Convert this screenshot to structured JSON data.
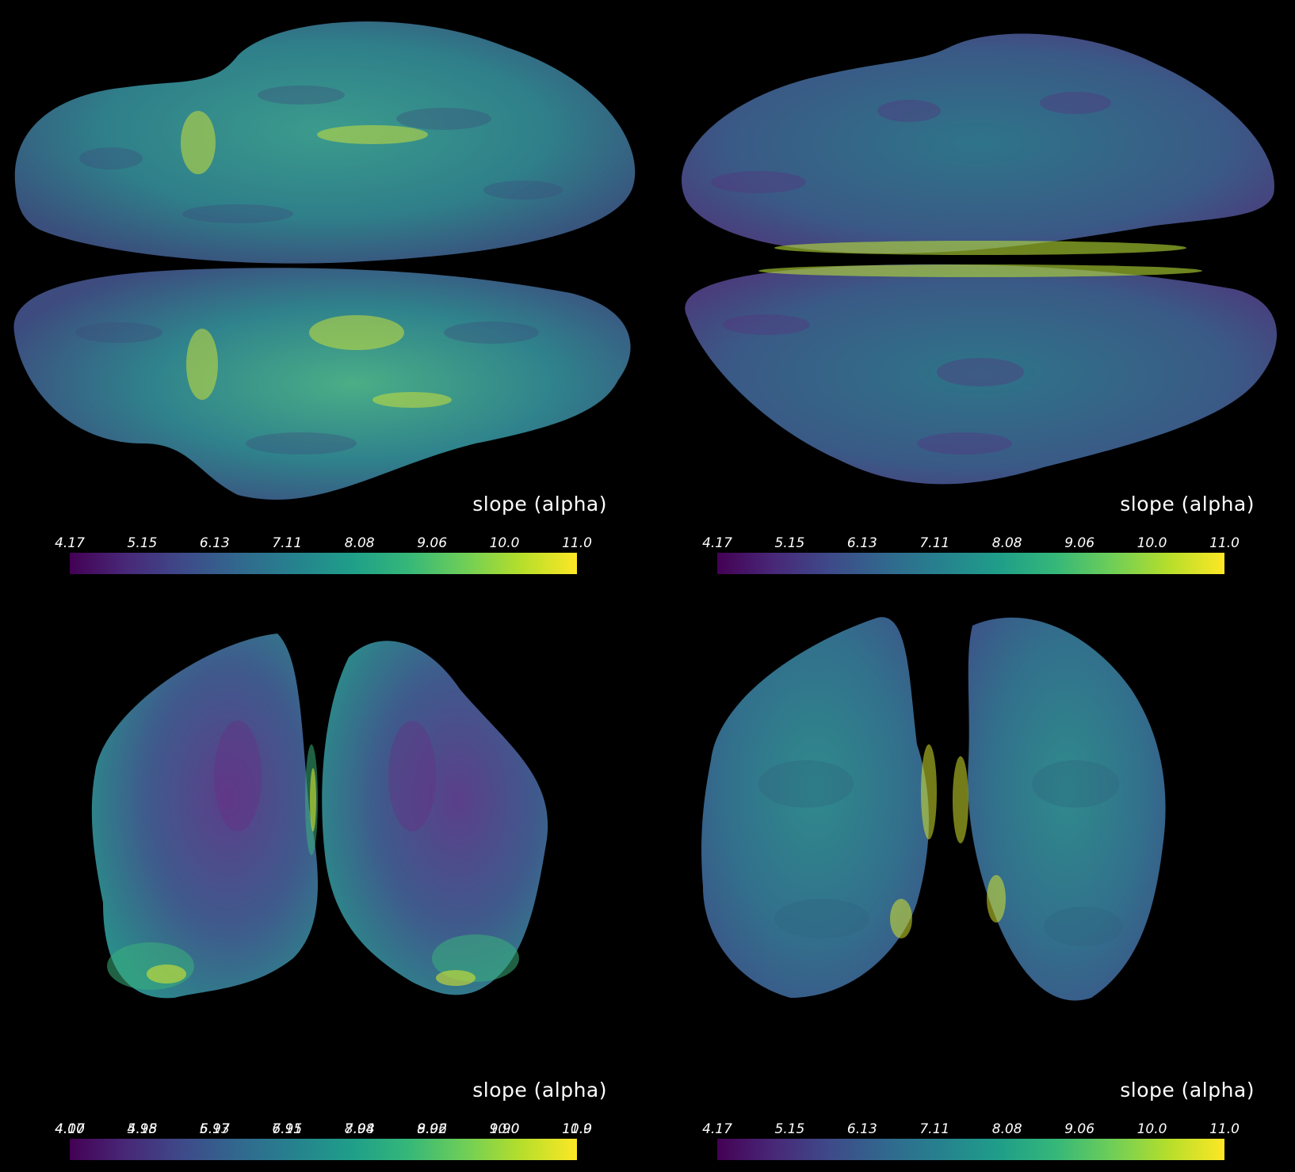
{
  "colormap": [
    "#440154",
    "#482878",
    "#3e4a89",
    "#31688e",
    "#26828e",
    "#1f9e89",
    "#35b779",
    "#6ece58",
    "#b5de2b",
    "#fde725"
  ],
  "panels": [
    {
      "view": "lateral",
      "title": "slope (alpha)",
      "ticks": [
        "4.17",
        "5.15",
        "6.13",
        "7.11",
        "8.08",
        "9.06",
        "10.0",
        "11.0"
      ]
    },
    {
      "view": "medial",
      "title": "slope (alpha)",
      "ticks": [
        "4.17",
        "5.15",
        "6.13",
        "7.11",
        "8.08",
        "9.06",
        "10.0",
        "11.0"
      ]
    },
    {
      "view": "anterior",
      "title": "slope (alpha)",
      "ticks": [
        "4.00",
        "4.98",
        "5.97",
        "6.95",
        "7.94",
        "8.92",
        "9.90",
        "10.9"
      ],
      "overlap_ticks": [
        "4.17",
        "5.15",
        "6.13",
        "7.11",
        "8.08",
        "9.06",
        "10.0",
        "11.0"
      ]
    },
    {
      "view": "posterior",
      "title": "slope (alpha)",
      "ticks": [
        "4.17",
        "5.15",
        "6.13",
        "7.11",
        "8.08",
        "9.06",
        "10.0",
        "11.0"
      ]
    }
  ]
}
